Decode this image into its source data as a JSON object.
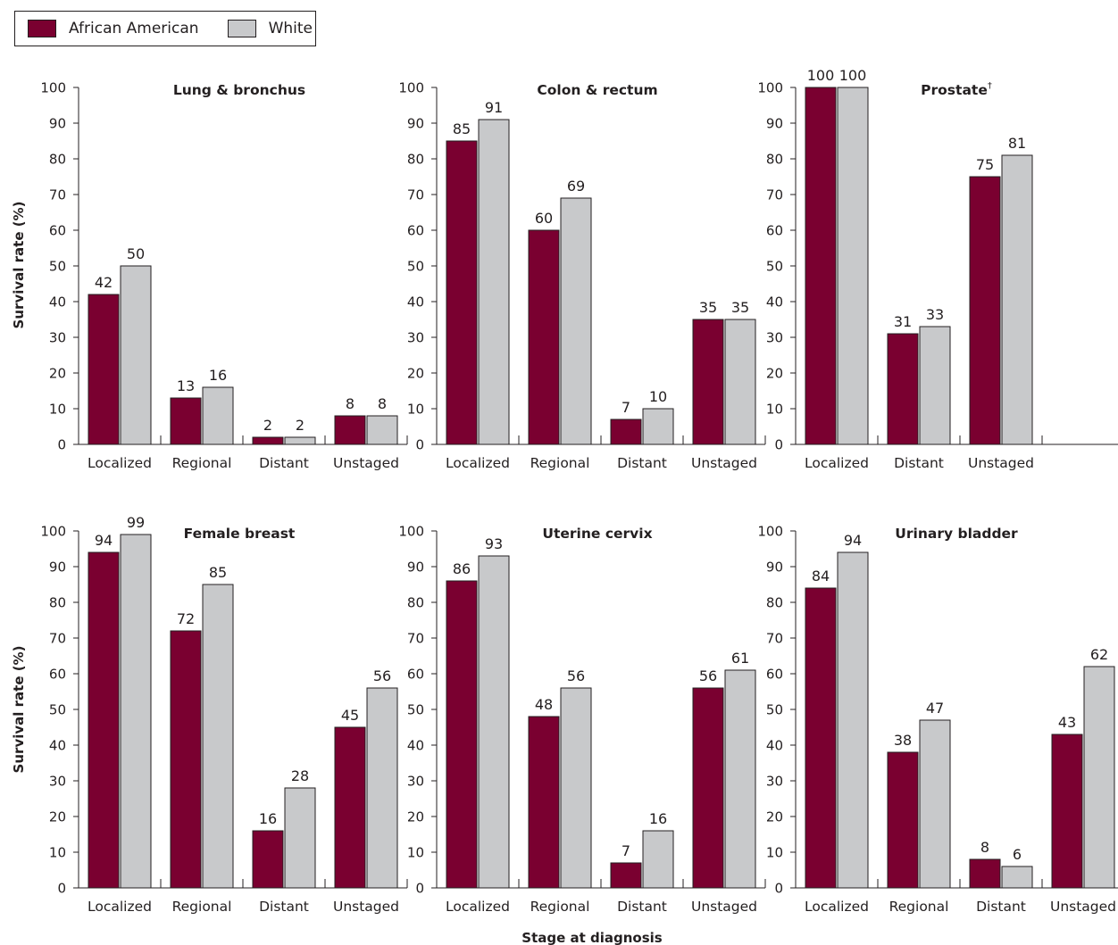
{
  "legend": [
    {
      "name": "African American",
      "color": "#7a0030"
    },
    {
      "name": "White",
      "color": "#c8c9cb"
    }
  ],
  "ylabel": "Survival rate (%)",
  "xlabel": "Stage at diagnosis",
  "chart_data": [
    {
      "type": "bar",
      "title": "Lung & bronchus",
      "title_sup": "",
      "categories": [
        "Localized",
        "Regional",
        "Distant",
        "Unstaged"
      ],
      "series": [
        {
          "name": "African American",
          "values": [
            42,
            13,
            2,
            8
          ]
        },
        {
          "name": "White",
          "values": [
            50,
            16,
            2,
            8
          ]
        }
      ],
      "yticks": [
        0,
        10,
        20,
        30,
        40,
        50,
        60,
        70,
        80,
        90,
        100
      ],
      "ylim": [
        0,
        100
      ]
    },
    {
      "type": "bar",
      "title": "Colon & rectum",
      "title_sup": "",
      "categories": [
        "Localized",
        "Regional",
        "Distant",
        "Unstaged"
      ],
      "series": [
        {
          "name": "African American",
          "values": [
            85,
            60,
            7,
            35
          ]
        },
        {
          "name": "White",
          "values": [
            91,
            69,
            10,
            35
          ]
        }
      ],
      "yticks": [
        0,
        10,
        20,
        30,
        40,
        50,
        60,
        70,
        80,
        90,
        100
      ],
      "ylim": [
        0,
        100
      ]
    },
    {
      "type": "bar",
      "title": "Prostate",
      "title_sup": "†",
      "categories": [
        "Localized",
        "Distant",
        "Unstaged"
      ],
      "series": [
        {
          "name": "African American",
          "values": [
            100,
            31,
            75
          ]
        },
        {
          "name": "White",
          "values": [
            100,
            33,
            81
          ]
        }
      ],
      "yticks": [
        0,
        10,
        20,
        30,
        40,
        50,
        60,
        70,
        80,
        90,
        100
      ],
      "ylim": [
        0,
        100
      ]
    },
    {
      "type": "bar",
      "title": "Female breast",
      "title_sup": "",
      "categories": [
        "Localized",
        "Regional",
        "Distant",
        "Unstaged"
      ],
      "series": [
        {
          "name": "African American",
          "values": [
            94,
            72,
            16,
            45
          ]
        },
        {
          "name": "White",
          "values": [
            99,
            85,
            28,
            56
          ]
        }
      ],
      "yticks": [
        0,
        10,
        20,
        30,
        40,
        50,
        60,
        70,
        80,
        90,
        100
      ],
      "ylim": [
        0,
        100
      ]
    },
    {
      "type": "bar",
      "title": "Uterine cervix",
      "title_sup": "",
      "categories": [
        "Localized",
        "Regional",
        "Distant",
        "Unstaged"
      ],
      "series": [
        {
          "name": "African American",
          "values": [
            86,
            48,
            7,
            56
          ]
        },
        {
          "name": "White",
          "values": [
            93,
            56,
            16,
            61
          ]
        }
      ],
      "yticks": [
        0,
        10,
        20,
        30,
        40,
        50,
        60,
        70,
        80,
        90,
        100
      ],
      "ylim": [
        0,
        100
      ]
    },
    {
      "type": "bar",
      "title": "Urinary bladder",
      "title_sup": "",
      "categories": [
        "Localized",
        "Regional",
        "Distant",
        "Unstaged"
      ],
      "series": [
        {
          "name": "African American",
          "values": [
            84,
            38,
            8,
            43
          ]
        },
        {
          "name": "White",
          "values": [
            94,
            47,
            6,
            62
          ]
        }
      ],
      "yticks": [
        0,
        10,
        20,
        30,
        40,
        50,
        60,
        70,
        80,
        90,
        100
      ],
      "ylim": [
        0,
        100
      ]
    }
  ]
}
